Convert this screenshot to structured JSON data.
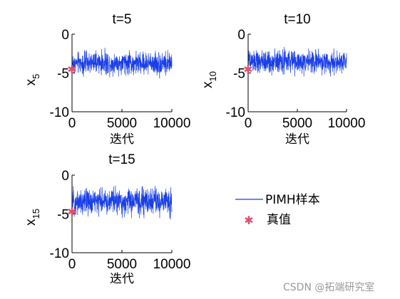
{
  "colors": {
    "series": "#1a3fe6",
    "truth": "#e0506e",
    "axis": "#000000",
    "watermark": "#9a9a9a"
  },
  "legend": {
    "series_label": "PIMH样本",
    "truth_label": "真值"
  },
  "watermark": "CSDN @拓端研究室",
  "chart_data": [
    {
      "type": "line",
      "title": "t=5",
      "ylabel": "x",
      "ylabel_sub": "5",
      "xlabel": "迭代",
      "xlim": [
        0,
        10000
      ],
      "ylim": [
        -10,
        0
      ],
      "x_ticks": [
        "0",
        "5000",
        "10000"
      ],
      "y_ticks": [
        "0",
        "-5",
        "-10"
      ],
      "series": [
        {
          "name": "PIMH样本",
          "n": 10000,
          "mean": -3.7,
          "low": -5.8,
          "high": -1.7
        }
      ],
      "truth": {
        "x": 0,
        "y": -4.5
      }
    },
    {
      "type": "line",
      "title": "t=10",
      "ylabel": "x",
      "ylabel_sub": "10",
      "xlabel": "迭代",
      "xlim": [
        0,
        10000
      ],
      "ylim": [
        -10,
        0
      ],
      "x_ticks": [
        "0",
        "5000",
        "10000"
      ],
      "y_ticks": [
        "0",
        "-5",
        "-10"
      ],
      "series": [
        {
          "name": "PIMH样本",
          "n": 10000,
          "mean": -3.6,
          "low": -5.6,
          "high": -1.5
        }
      ],
      "truth": {
        "x": 0,
        "y": -4.5
      }
    },
    {
      "type": "line",
      "title": "t=15",
      "ylabel": "x",
      "ylabel_sub": "15",
      "xlabel": "迭代",
      "xlim": [
        0,
        10000
      ],
      "ylim": [
        -10,
        0
      ],
      "x_ticks": [
        "0",
        "5000",
        "10000"
      ],
      "y_ticks": [
        "0",
        "-5",
        "-10"
      ],
      "series": [
        {
          "name": "PIMH样本",
          "n": 10000,
          "mean": -3.6,
          "low": -5.8,
          "high": -1.0
        }
      ],
      "truth": {
        "x": 0,
        "y": -4.7
      }
    }
  ]
}
